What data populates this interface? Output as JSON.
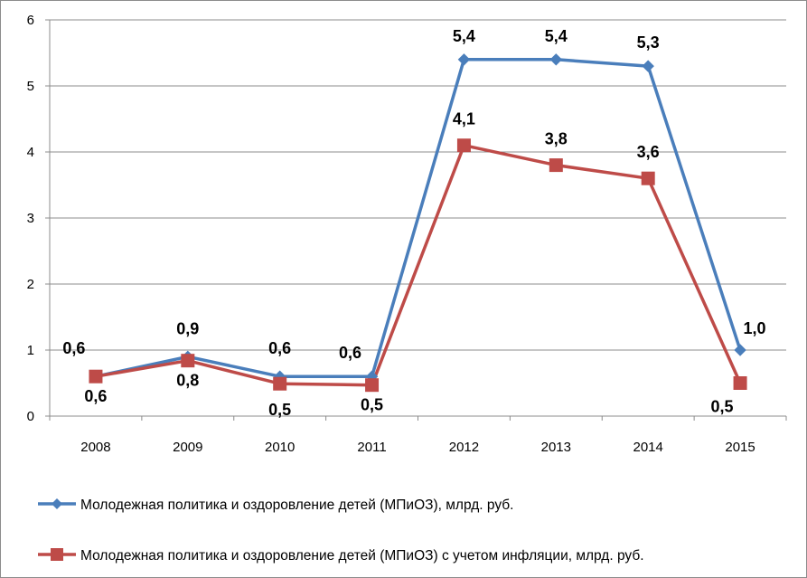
{
  "chart_data": {
    "type": "line",
    "categories": [
      "2008",
      "2009",
      "2010",
      "2011",
      "2012",
      "2013",
      "2014",
      "2015"
    ],
    "ylim": [
      0,
      6
    ],
    "yticks": [
      "0",
      "1",
      "2",
      "3",
      "4",
      "5",
      "6"
    ],
    "grid": true,
    "legend_position": "bottom",
    "series": [
      {
        "name": "Молодежная политика и оздоровление детей (МПиОЗ), млрд. руб.",
        "values": [
          0.6,
          0.9,
          0.6,
          0.6,
          5.4,
          5.4,
          5.3,
          1.0
        ],
        "labels": [
          "0,6",
          "0,9",
          "0,6",
          "0,6",
          "5,4",
          "5,4",
          "5,3",
          "1,0"
        ],
        "color": "#4a7ebb",
        "marker": "diamond"
      },
      {
        "name": "Молодежная политика и оздоровление детей (МПиОЗ) с учетом инфляции, млрд. руб.",
        "values": [
          0.6,
          0.84,
          0.49,
          0.47,
          4.1,
          3.8,
          3.6,
          0.5
        ],
        "labels": [
          "0,6",
          "0,8",
          "0,5",
          "0,5",
          "4,1",
          "3,8",
          "3,6",
          "0,5"
        ],
        "color": "#be4b48",
        "marker": "square"
      }
    ]
  }
}
